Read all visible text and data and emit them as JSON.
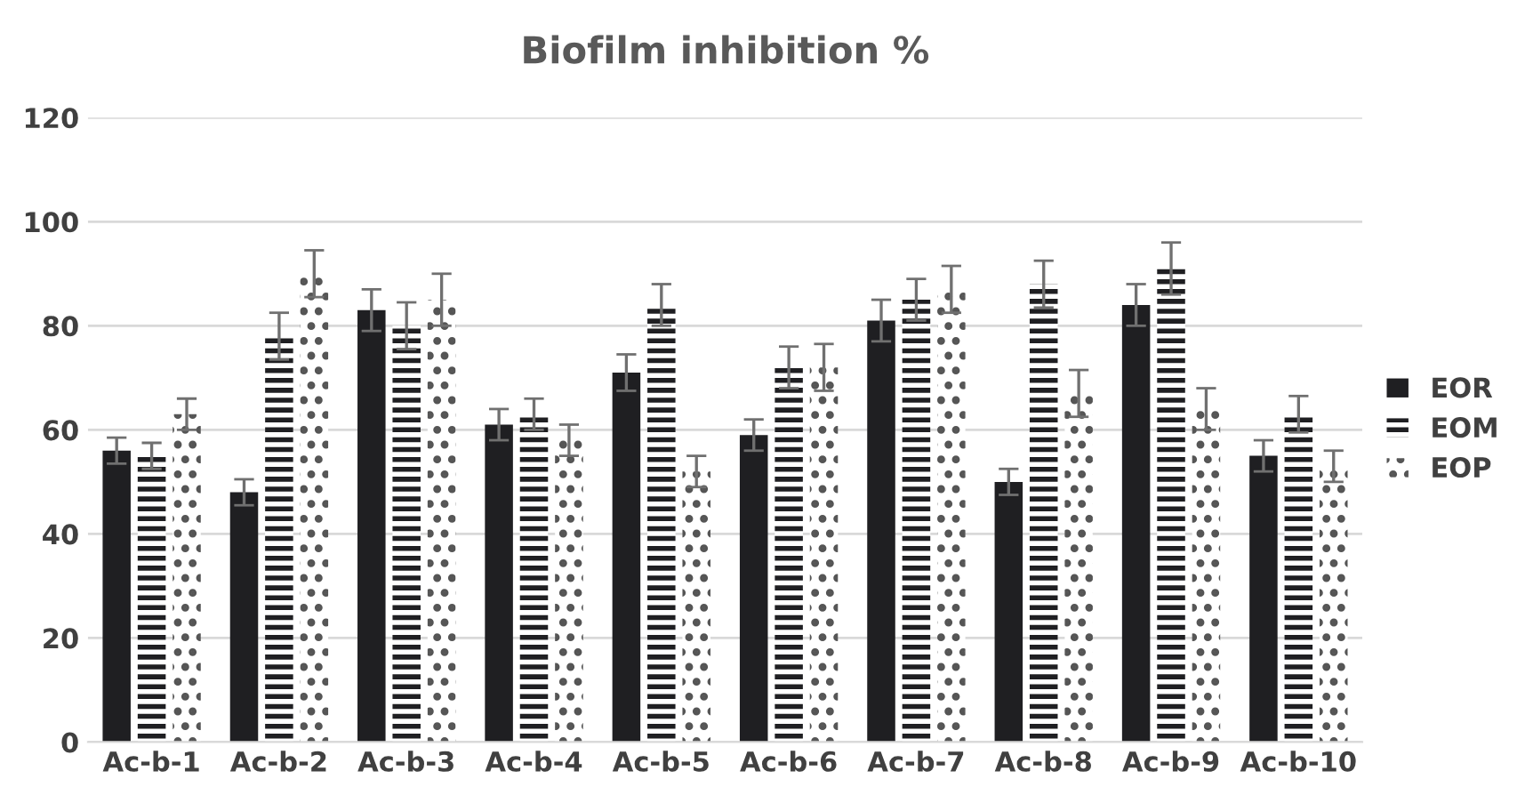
{
  "chart_data": {
    "type": "bar",
    "title": "Biofilm inhibition %",
    "categories": [
      "Ac-b-1",
      "Ac-b-2",
      "Ac-b-3",
      "Ac-b-4",
      "Ac-b-5",
      "Ac-b-6",
      "Ac-b-7",
      "Ac-b-8",
      "Ac-b-9",
      "Ac-b-10"
    ],
    "series": [
      {
        "name": "EOR",
        "color": "#1f1f22",
        "values": [
          56,
          48,
          83,
          61,
          71,
          59,
          81,
          50,
          84,
          55
        ],
        "errors": [
          2.5,
          2.5,
          4,
          3,
          3.5,
          3,
          4,
          2.5,
          4,
          3
        ]
      },
      {
        "name": "EOM",
        "color": "#1f1f22",
        "values": [
          55,
          78,
          80,
          63,
          84,
          72,
          85,
          88,
          91,
          63
        ],
        "errors": [
          2.5,
          4.5,
          4.5,
          3,
          4,
          4,
          4,
          4.5,
          5,
          3.5
        ]
      },
      {
        "name": "EOP",
        "color": "#555555",
        "values": [
          63,
          90,
          85,
          58,
          52,
          72,
          87,
          67,
          64,
          53
        ],
        "errors": [
          3,
          4.5,
          5,
          3,
          3,
          4.5,
          4.5,
          4.5,
          4,
          3
        ]
      }
    ],
    "ylim": [
      0,
      120
    ],
    "yticks": [
      0,
      20,
      40,
      60,
      80,
      100,
      120
    ],
    "grid": "y",
    "legend": "right"
  }
}
